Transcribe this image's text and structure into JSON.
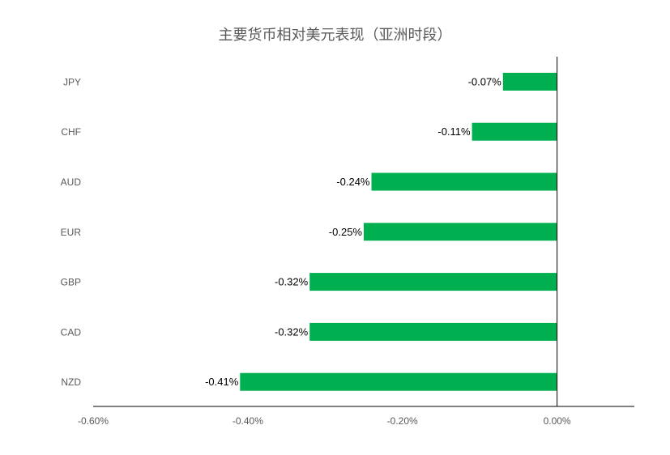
{
  "chart_data": {
    "type": "bar",
    "orientation": "horizontal",
    "title": "主要货币相对美元表现（亚洲时段）",
    "xlabel": "",
    "ylabel": "",
    "categories": [
      "JPY",
      "CHF",
      "AUD",
      "EUR",
      "GBP",
      "CAD",
      "NZD"
    ],
    "values": [
      -0.07,
      -0.11,
      -0.24,
      -0.25,
      -0.32,
      -0.32,
      -0.41
    ],
    "data_labels": [
      "-0.07%",
      "-0.11%",
      "-0.24%",
      "-0.25%",
      "-0.32%",
      "-0.32%",
      "-0.41%"
    ],
    "xlim": [
      -0.6,
      0.1
    ],
    "x_ticks": [
      -0.6,
      -0.4,
      -0.2,
      0.0
    ],
    "x_tick_labels": [
      "-0.60%",
      "-0.40%",
      "-0.20%",
      "0.00%"
    ],
    "grid": false,
    "legend": "none",
    "bar_color": "#00B050",
    "text_color": "#595959",
    "axis_color": "#000000"
  }
}
